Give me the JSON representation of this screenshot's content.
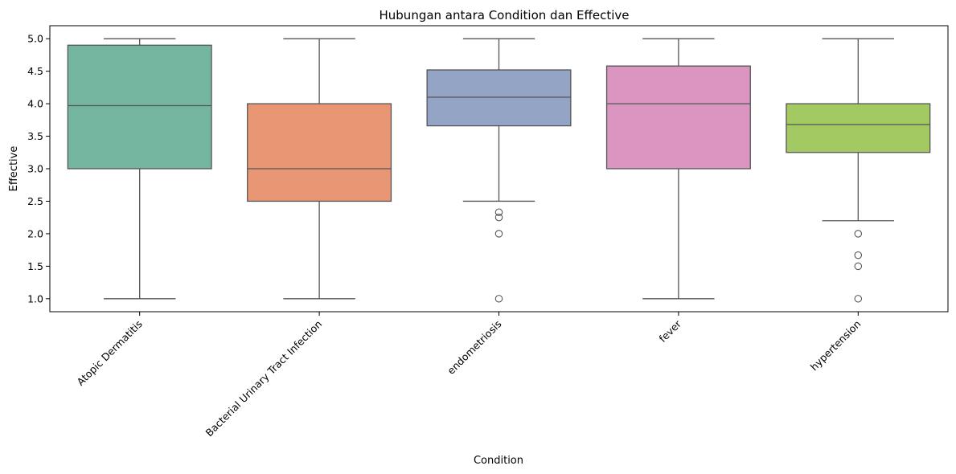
{
  "chart_data": {
    "type": "box",
    "title": "Hubungan antara Condition dan Effective",
    "xlabel": "Condition",
    "ylabel": "Effective",
    "ylim": [
      0.8,
      5.2
    ],
    "yticks": [
      1.0,
      1.5,
      2.0,
      2.5,
      3.0,
      3.5,
      4.0,
      4.5,
      5.0
    ],
    "ytick_labels": [
      "1.0",
      "1.5",
      "2.0",
      "2.5",
      "3.0",
      "3.5",
      "4.0",
      "4.5",
      "5.0"
    ],
    "grid": false,
    "categories": [
      "Atopic Dermatitis",
      "Bacterial Urinary Tract Infection",
      "endometriosis",
      "fever",
      "hypertension"
    ],
    "boxes": [
      {
        "category": "Atopic Dermatitis",
        "whisker_low": 1.0,
        "q1": 3.0,
        "median": 3.97,
        "q3": 4.9,
        "whisker_high": 5.0,
        "outliers": [],
        "color": "#74b59f"
      },
      {
        "category": "Bacterial Urinary Tract Infection",
        "whisker_low": 1.0,
        "q1": 2.5,
        "median": 3.0,
        "q3": 4.0,
        "whisker_high": 5.0,
        "outliers": [],
        "color": "#e99674"
      },
      {
        "category": "endometriosis",
        "whisker_low": 2.5,
        "q1": 3.66,
        "median": 4.1,
        "q3": 4.52,
        "whisker_high": 5.0,
        "outliers": [
          2.33,
          2.25,
          2.0,
          1.0
        ],
        "color": "#93a4c5"
      },
      {
        "category": "fever",
        "whisker_low": 1.0,
        "q1": 3.0,
        "median": 4.0,
        "q3": 4.58,
        "whisker_high": 5.0,
        "outliers": [],
        "color": "#da96c1"
      },
      {
        "category": "hypertension",
        "whisker_low": 2.2,
        "q1": 3.25,
        "median": 3.68,
        "q3": 4.0,
        "whisker_high": 5.0,
        "outliers": [
          2.0,
          1.67,
          1.5,
          1.0
        ],
        "color": "#a2c962"
      }
    ],
    "line_color": "#555555"
  }
}
